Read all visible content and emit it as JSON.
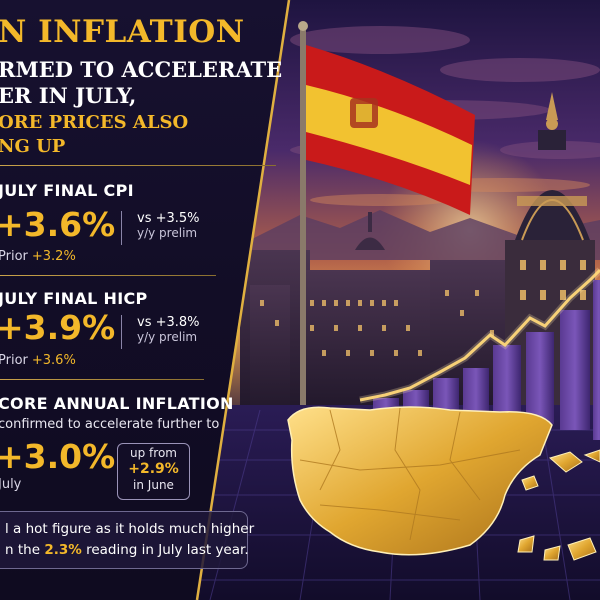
{
  "headline": {
    "line1": "N INFLATION",
    "line2": "RMED TO ACCELERATE",
    "line3": "ER IN JULY,",
    "line4": "ORE PRICES ALSO",
    "line5": "NG UP"
  },
  "cpi": {
    "title": "JULY FINAL CPI",
    "value": "+3.6%",
    "vs_line1": "vs +3.5%",
    "vs_line2": "y/y prelim",
    "prior_label": "Prior",
    "prior_value": "+3.2%"
  },
  "hicp": {
    "title": "JULY FINAL HICP",
    "value": "+3.9%",
    "vs_line1": "vs +3.8%",
    "vs_line2": "y/y prelim",
    "prior_label": "Prior",
    "prior_value": "+3.6%"
  },
  "core": {
    "title": "CORE ANNUAL INFLATION",
    "subtitle": "confirmed to accelerate further to",
    "value": "+3.0%",
    "period": "July",
    "up_from_label": "up from",
    "up_from_value": "+2.9%",
    "up_from_period": "in June"
  },
  "note": {
    "line1": "l a hot figure as it holds much higher",
    "line2_pre": "n the",
    "line2_value": "2.3%",
    "line2_post": "reading in July last year."
  },
  "colors": {
    "gold": "#f3b82a",
    "panel": "#120d26",
    "sky_top": "#2a1a4e",
    "sky_glow": "#f2a04a"
  },
  "art": {
    "flag": "spain-flag",
    "map": "spain-map-gold",
    "bars": "rising-bar-chart",
    "building": "madrid-metropolis-dome"
  }
}
